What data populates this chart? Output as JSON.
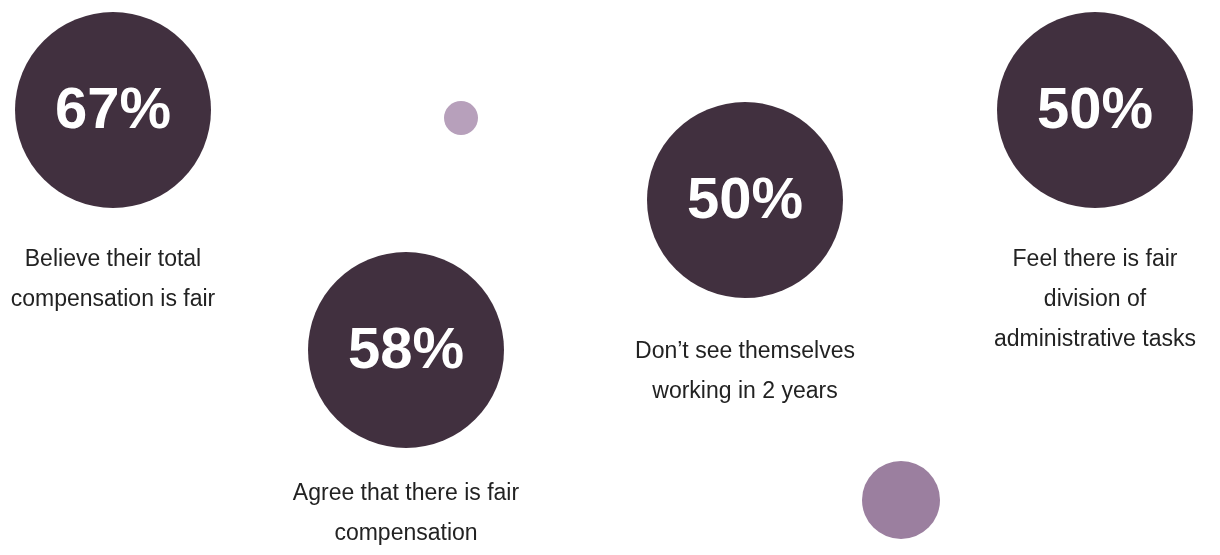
{
  "chart_data": {
    "type": "other",
    "color": "#41303f",
    "categories": [
      "Believe their total compensation is fair",
      "Agree that there is fair compensation",
      "Don’t see themselves working in 2 years",
      "Feel there is fair division of administrative tasks"
    ],
    "values": [
      67,
      58,
      50,
      50
    ],
    "value_labels": [
      "67%",
      "58%",
      "50%",
      "50%"
    ]
  }
}
